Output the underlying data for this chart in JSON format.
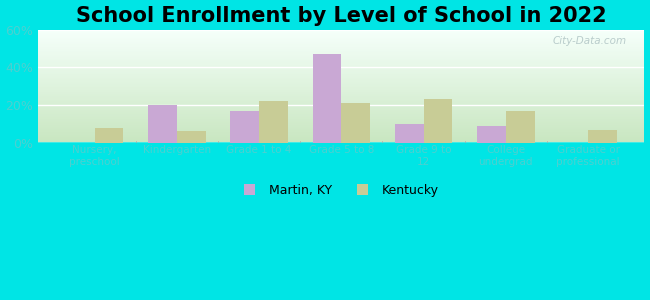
{
  "title": "School Enrollment by Level of School in 2022",
  "categories": [
    "Nursery,\npreschool",
    "Kindergarten",
    "Grade 1 to 4",
    "Grade 5 to 8",
    "Grade 9 to\n12",
    "College\nundergrad",
    "Graduate or\nprofessional"
  ],
  "martin_ky": [
    0,
    20,
    17,
    47,
    10,
    9,
    0
  ],
  "kentucky": [
    8,
    6,
    22,
    21,
    23,
    17,
    7
  ],
  "martin_color": "#c9a8d4",
  "kentucky_color": "#c8cc96",
  "background_outer": "#00e5e5",
  "grad_top": "#f5fffa",
  "grad_bottom": "#c8e6c0",
  "ylim": [
    0,
    60
  ],
  "yticks": [
    0,
    20,
    40,
    60
  ],
  "ytick_labels": [
    "0%",
    "20%",
    "40%",
    "60%"
  ],
  "title_fontsize": 15,
  "bar_width": 0.35,
  "legend_labels": [
    "Martin, KY",
    "Kentucky"
  ],
  "watermark": "City-Data.com",
  "tick_label_color": "#4dd0d0",
  "grid_color": "#ffffff"
}
